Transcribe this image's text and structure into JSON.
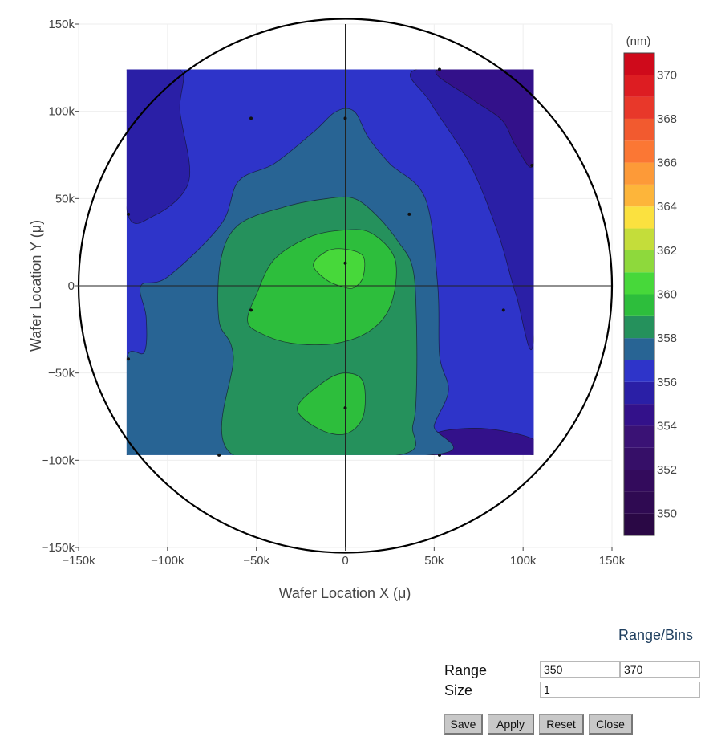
{
  "chart_data": {
    "type": "contour",
    "xlabel": "Wafer Location X (μ)",
    "ylabel": "Wafer Location Y (μ)",
    "xlim": [
      -150000,
      150000
    ],
    "ylim": [
      -150000,
      150000
    ],
    "x_ticks": [
      {
        "value": -150000,
        "label": "−150k"
      },
      {
        "value": -100000,
        "label": "−100k"
      },
      {
        "value": -50000,
        "label": "−50k"
      },
      {
        "value": 0,
        "label": "0"
      },
      {
        "value": 50000,
        "label": "50k"
      },
      {
        "value": 100000,
        "label": "100k"
      },
      {
        "value": 150000,
        "label": "150k"
      }
    ],
    "y_ticks": [
      {
        "value": 150000,
        "label": "150k"
      },
      {
        "value": 100000,
        "label": "100k"
      },
      {
        "value": 50000,
        "label": "50k"
      },
      {
        "value": 0,
        "label": "0"
      },
      {
        "value": -50000,
        "label": "−50k"
      },
      {
        "value": -100000,
        "label": "−100k"
      },
      {
        "value": -150000,
        "label": "−150k"
      }
    ],
    "grid": true,
    "wafer_radius": 150000,
    "contour_extent": {
      "x": [
        -123000,
        106000
      ],
      "y": [
        -97000,
        124000
      ]
    },
    "colorbar": {
      "title": "(nm)",
      "range": [
        349,
        371
      ],
      "ticks": [
        {
          "value": 370,
          "label": "370"
        },
        {
          "value": 368,
          "label": "368"
        },
        {
          "value": 366,
          "label": "366"
        },
        {
          "value": 364,
          "label": "364"
        },
        {
          "value": 362,
          "label": "362"
        },
        {
          "value": 360,
          "label": "360"
        },
        {
          "value": 358,
          "label": "358"
        },
        {
          "value": 356,
          "label": "356"
        },
        {
          "value": 354,
          "label": "354"
        },
        {
          "value": 352,
          "label": "352"
        },
        {
          "value": 350,
          "label": "350"
        }
      ],
      "bins": [
        {
          "from": 349,
          "to": 350,
          "color": "#2a0845"
        },
        {
          "from": 350,
          "to": 351,
          "color": "#2f0a52"
        },
        {
          "from": 351,
          "to": 352,
          "color": "#330b5c"
        },
        {
          "from": 352,
          "to": 353,
          "color": "#360f68"
        },
        {
          "from": 353,
          "to": 354,
          "color": "#3a1275"
        },
        {
          "from": 354,
          "to": 355,
          "color": "#33118a"
        },
        {
          "from": 355,
          "to": 356,
          "color": "#2a1fa6"
        },
        {
          "from": 356,
          "to": 357,
          "color": "#2e34c9"
        },
        {
          "from": 357,
          "to": 358,
          "color": "#286494"
        },
        {
          "from": 358,
          "to": 359,
          "color": "#25915c"
        },
        {
          "from": 359,
          "to": 360,
          "color": "#2dbe3c"
        },
        {
          "from": 360,
          "to": 361,
          "color": "#47d83a"
        },
        {
          "from": 361,
          "to": 362,
          "color": "#8ed93c"
        },
        {
          "from": 362,
          "to": 363,
          "color": "#c4dd3a"
        },
        {
          "from": 363,
          "to": 364,
          "color": "#fbe13f"
        },
        {
          "from": 364,
          "to": 365,
          "color": "#fdb53a"
        },
        {
          "from": 365,
          "to": 366,
          "color": "#fd9a38"
        },
        {
          "from": 366,
          "to": 367,
          "color": "#fb7734"
        },
        {
          "from": 367,
          "to": 368,
          "color": "#f25a2f"
        },
        {
          "from": 368,
          "to": 369,
          "color": "#e8382a"
        },
        {
          "from": 369,
          "to": 370,
          "color": "#dd1d22"
        },
        {
          "from": 370,
          "to": 371,
          "color": "#cf0a1b"
        }
      ]
    },
    "regions": [
      {
        "level": 356,
        "color": "#2e34c9",
        "points": [
          [
            -123000,
            124000
          ],
          [
            106000,
            124000
          ],
          [
            106000,
            -97000
          ],
          [
            -123000,
            -97000
          ]
        ]
      },
      {
        "level": 355,
        "color": "#2a1fa6",
        "points": [
          [
            -123000,
            124000
          ],
          [
            -93000,
            124000
          ],
          [
            -93000,
            100000
          ],
          [
            -88000,
            60000
          ],
          [
            -108000,
            40000
          ],
          [
            -123000,
            44000
          ]
        ]
      },
      {
        "level": 355,
        "color": "#2a1fa6",
        "points": [
          [
            40000,
            124000
          ],
          [
            106000,
            124000
          ],
          [
            106000,
            -30000
          ],
          [
            96000,
            -5000
          ],
          [
            86000,
            30000
          ],
          [
            70000,
            70000
          ],
          [
            48000,
            105000
          ]
        ]
      },
      {
        "level": 354,
        "color": "#33118a",
        "points": [
          [
            52000,
            124000
          ],
          [
            106000,
            124000
          ],
          [
            106000,
            70000
          ],
          [
            96000,
            80000
          ],
          [
            88000,
            95000
          ],
          [
            70000,
            108000
          ]
        ]
      },
      {
        "level": 354,
        "color": "#33118a",
        "points": [
          [
            48000,
            -97000
          ],
          [
            48000,
            -88000
          ],
          [
            56000,
            -83000
          ],
          [
            80000,
            -82000
          ],
          [
            106000,
            -88000
          ],
          [
            106000,
            -97000
          ]
        ]
      },
      {
        "level": 357,
        "color": "#286494",
        "points": [
          [
            -123000,
            -97000
          ],
          [
            -123000,
            -42000
          ],
          [
            -113000,
            -38000
          ],
          [
            -112000,
            -18000
          ],
          [
            -115000,
            0
          ],
          [
            -100000,
            5000
          ],
          [
            -70000,
            35000
          ],
          [
            -60000,
            60000
          ],
          [
            -40000,
            70000
          ],
          [
            -18000,
            88000
          ],
          [
            -5000,
            100000
          ],
          [
            5000,
            100000
          ],
          [
            13000,
            85000
          ],
          [
            25000,
            70000
          ],
          [
            45000,
            50000
          ],
          [
            52000,
            0
          ],
          [
            53000,
            -40000
          ],
          [
            58000,
            -60000
          ],
          [
            50000,
            -80000
          ],
          [
            48000,
            -97000
          ]
        ]
      },
      {
        "level": 358,
        "color": "#25915c",
        "points": [
          [
            -63000,
            -97000
          ],
          [
            -63000,
            -40000
          ],
          [
            -71000,
            -20000
          ],
          [
            -70000,
            15000
          ],
          [
            -60000,
            35000
          ],
          [
            -35000,
            45000
          ],
          [
            -10000,
            50000
          ],
          [
            5000,
            50000
          ],
          [
            18000,
            40000
          ],
          [
            30000,
            25000
          ],
          [
            38000,
            10000
          ],
          [
            40000,
            -20000
          ],
          [
            40000,
            -60000
          ],
          [
            38000,
            -80000
          ],
          [
            30000,
            -97000
          ]
        ]
      },
      {
        "level": 359,
        "color": "#2dbe3c",
        "points": [
          [
            -55000,
            -20000
          ],
          [
            -50000,
            -5000
          ],
          [
            -40000,
            15000
          ],
          [
            -20000,
            28000
          ],
          [
            0,
            32000
          ],
          [
            15000,
            30000
          ],
          [
            28000,
            15000
          ],
          [
            26000,
            -10000
          ],
          [
            15000,
            -25000
          ],
          [
            -5000,
            -33000
          ],
          [
            -30000,
            -33000
          ],
          [
            -48000,
            -27000
          ]
        ]
      },
      {
        "level": 359,
        "color": "#2dbe3c",
        "points": [
          [
            -27000,
            -70000
          ],
          [
            -12000,
            -55000
          ],
          [
            0,
            -50000
          ],
          [
            10000,
            -55000
          ],
          [
            10000,
            -75000
          ],
          [
            0,
            -85000
          ],
          [
            -15000,
            -82000
          ]
        ]
      },
      {
        "level": 360,
        "color": "#47d83a",
        "points": [
          [
            -18000,
            12000
          ],
          [
            -10000,
            20000
          ],
          [
            0,
            21000
          ],
          [
            10000,
            17000
          ],
          [
            10000,
            5000
          ],
          [
            5000,
            -1000
          ],
          [
            0,
            -1000
          ],
          [
            -10000,
            3000
          ]
        ]
      }
    ],
    "measurement_points": [
      {
        "x": 0,
        "y": 96000
      },
      {
        "x": 36000,
        "y": 41000
      },
      {
        "x": 0,
        "y": 13000
      },
      {
        "x": -53000,
        "y": -14000
      },
      {
        "x": 0,
        "y": -70000
      },
      {
        "x": -53000,
        "y": 96000
      },
      {
        "x": -122000,
        "y": 41000
      },
      {
        "x": -122000,
        "y": -42000
      },
      {
        "x": -71000,
        "y": -97000
      },
      {
        "x": 53000,
        "y": -97000
      },
      {
        "x": 53000,
        "y": 124000
      },
      {
        "x": 105000,
        "y": 69000
      },
      {
        "x": 89000,
        "y": -14000
      }
    ]
  },
  "controls": {
    "link": "Range/Bins",
    "range_label": "Range",
    "size_label": "Size",
    "range_min": "350",
    "range_max": "370",
    "size_value": "1",
    "save": "Save",
    "apply": "Apply",
    "reset": "Reset",
    "close": "Close"
  }
}
